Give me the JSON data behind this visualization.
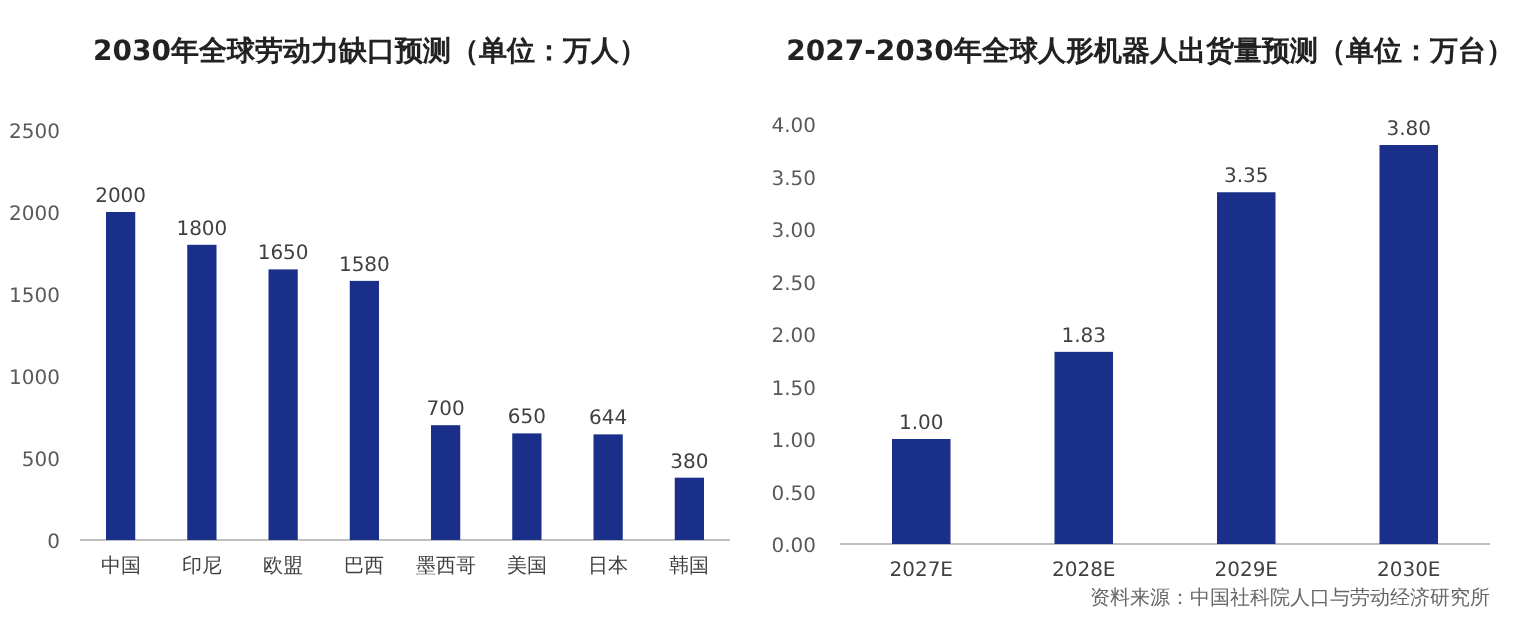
{
  "chart_data": [
    {
      "type": "bar",
      "title": "2030年全球劳动力缺口预测（单位：万人）",
      "categories": [
        "中国",
        "印尼",
        "欧盟",
        "巴西",
        "墨西哥",
        "美国",
        "日本",
        "韩国"
      ],
      "values": [
        2000,
        1800,
        1650,
        1580,
        700,
        650,
        644,
        380
      ],
      "color": "#1a2f8a",
      "ylim": [
        0,
        2500
      ],
      "yticks": [
        0,
        500,
        1000,
        1500,
        2000,
        2500
      ],
      "data_labels": true
    },
    {
      "type": "bar",
      "title": "2027-2030年全球人形机器人出货量预测（单位：万台）",
      "categories": [
        "2027E",
        "2028E",
        "2029E",
        "2030E"
      ],
      "values": [
        1.0,
        1.83,
        3.35,
        3.8
      ],
      "value_labels": [
        "1.00",
        "1.83",
        "3.35",
        "3.80"
      ],
      "color": "#1a2f8a",
      "ylim": [
        0,
        4
      ],
      "yticks": [
        {
          "value": 0,
          "label": "0.00"
        },
        {
          "value": 0.5,
          "label": "0.50"
        },
        {
          "value": 1,
          "label": "1.00"
        },
        {
          "value": 1.5,
          "label": "1.50"
        },
        {
          "value": 2,
          "label": "2.00"
        },
        {
          "value": 2.5,
          "label": "2.50"
        },
        {
          "value": 3,
          "label": "3.00"
        },
        {
          "value": 3.5,
          "label": "3.50"
        },
        {
          "value": 4,
          "label": "4.00"
        }
      ],
      "annotations": [
        "资料来源：中国社科院人口与劳动经济研究所"
      ]
    }
  ]
}
